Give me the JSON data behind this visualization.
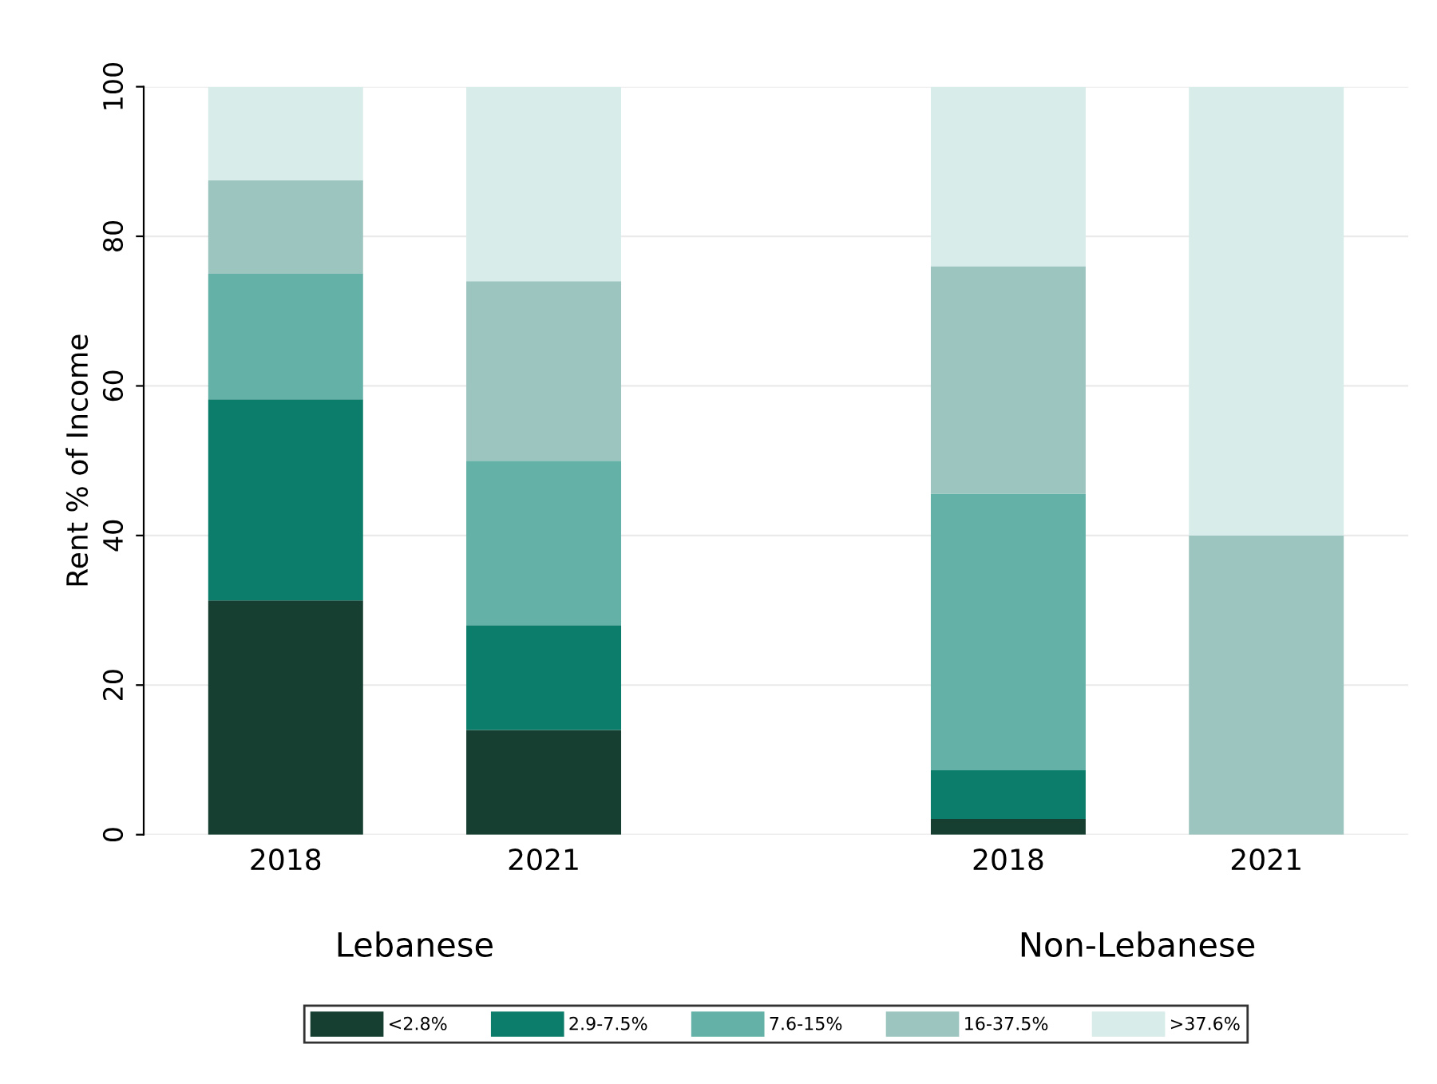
{
  "chart_data": {
    "type": "bar",
    "stacked": true,
    "ylabel": "Rent % of Income",
    "categories": [
      "2018",
      "2021",
      "2018",
      "2021"
    ],
    "series": [
      {
        "name": "<2.8%",
        "color": "#163f31",
        "values": [
          31.3,
          14,
          2.1,
          0
        ]
      },
      {
        "name": "2.9-7.5%",
        "color": "#0b7d6a",
        "values": [
          26.9,
          14,
          6.5,
          0
        ]
      },
      {
        "name": "7.6-15%",
        "color": "#63b1a7",
        "values": [
          16.8,
          22,
          37,
          0
        ]
      },
      {
        "name": "16-37.5%",
        "color": "#9dc5bf",
        "values": [
          12.5,
          24,
          30.4,
          40
        ]
      },
      {
        "name": ">37.6%",
        "color": "#d8ecea",
        "values": [
          12.5,
          26,
          24,
          60
        ]
      }
    ],
    "annotations": [
      "Lebanese",
      "Non-Lebanese"
    ],
    "ylim": [
      0,
      100
    ],
    "yticks": [
      0,
      20,
      40,
      60,
      80,
      100
    ],
    "grid": "y",
    "legend": "bottom"
  }
}
